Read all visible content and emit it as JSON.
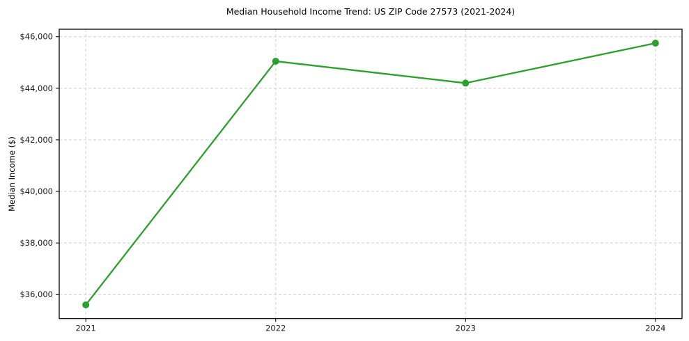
{
  "chart": {
    "title": "Median Household Income Trend: US ZIP Code 27573 (2021-2024)",
    "ylabel": "Median Income ($)"
  },
  "chart_data": {
    "type": "line",
    "title": "Median Household Income Trend: US ZIP Code 27573 (2021-2024)",
    "xlabel": "",
    "ylabel": "Median Income ($)",
    "categories": [
      "2021",
      "2022",
      "2023",
      "2024"
    ],
    "x": [
      2021,
      2022,
      2023,
      2024
    ],
    "values": [
      35600,
      45050,
      44200,
      45750
    ],
    "y_ticks": [
      36000,
      38000,
      40000,
      42000,
      44000,
      46000
    ],
    "y_tick_labels": [
      "$36,000",
      "$38,000",
      "$40,000",
      "$42,000",
      "$44,000",
      "$46,000"
    ],
    "x_tick_labels": [
      "2021",
      "2022",
      "2023",
      "2024"
    ],
    "xlim": [
      2020.86,
      2024.14
    ],
    "ylim": [
      35070,
      46290
    ],
    "grid": true,
    "grid_style": "dashed",
    "legend": "none",
    "line_color": "#2ca02c",
    "marker": "circle",
    "marker_color": "#2ca02c",
    "grid_color": "#d0d0d0",
    "spine_color": "#000000",
    "text_color": "#1a1a1a",
    "background": "#ffffff"
  }
}
